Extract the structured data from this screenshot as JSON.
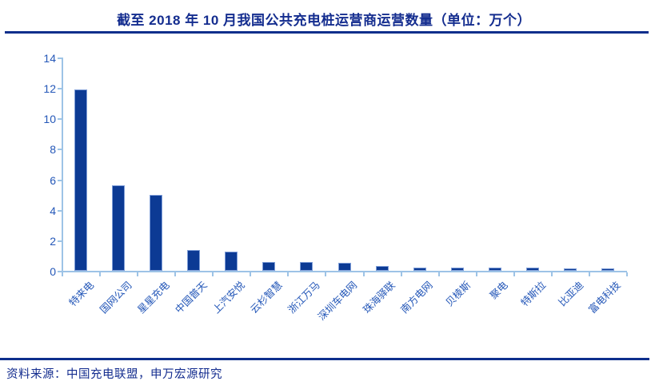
{
  "title": "截至 2018 年 10 月我国公共充电桩运营商运营数量（单位：万个）",
  "source_note": "资料来源：中国充电联盟，申万宏源研究",
  "colors": {
    "heading_navy": "#142d8f",
    "rule_navy": "#0d2e8c",
    "bar_fill": "#0c3a94",
    "bar_border": "#7f9ed8",
    "axis_light_blue": "#9dc3e6",
    "tick_label_blue": "#2457b8"
  },
  "chart_data": {
    "type": "bar",
    "title": "截至 2018 年 10 月我国公共充电桩运营商运营数量（单位：万个）",
    "unit": "万个",
    "categories": [
      "特来电",
      "国网公司",
      "星星充电",
      "中国普天",
      "上汽安悦",
      "云杉智慧",
      "浙江万马",
      "深圳车电网",
      "珠海驿联",
      "南方电网",
      "贝棱斯",
      "聚电",
      "特斯拉",
      "比亚迪",
      "富电科技"
    ],
    "values": [
      11.9,
      5.6,
      5.0,
      1.35,
      1.25,
      0.6,
      0.6,
      0.52,
      0.32,
      0.21,
      0.23,
      0.19,
      0.2,
      0.16,
      0.18
    ],
    "xlabel": "",
    "ylabel": "",
    "ylim": [
      0,
      14
    ],
    "ytick_step": 2,
    "yticks": [
      0,
      2,
      4,
      6,
      8,
      10,
      12,
      14
    ],
    "grid": false,
    "legend": "none",
    "xlabel_rotation_deg": 45
  }
}
